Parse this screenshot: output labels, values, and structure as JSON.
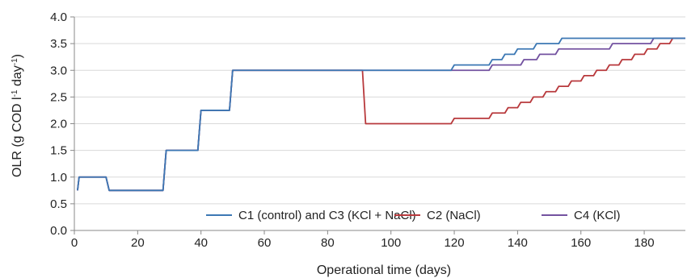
{
  "chart_data": {
    "type": "line",
    "xlabel": "Operational time (days)",
    "ylabel_parts": {
      "base": "OLR (g COD l",
      "sup1": "-1",
      "mid": " day",
      "sup2": "-1",
      "end": ")"
    },
    "xlim": [
      0,
      193
    ],
    "ylim": [
      0,
      4.0
    ],
    "x_ticks": [
      0,
      20,
      40,
      60,
      80,
      100,
      120,
      140,
      160,
      180
    ],
    "y_ticks": [
      "0.0",
      "0.5",
      "1.0",
      "1.5",
      "2.0",
      "2.5",
      "3.0",
      "3.5",
      "4.0"
    ],
    "legend_position": "bottom",
    "series": [
      {
        "name": "C1 (control) and C3 (KCl + NaCl)",
        "color": "#3c78b4",
        "points": [
          [
            1,
            0.75
          ],
          [
            1.5,
            1.0
          ],
          [
            10,
            1.0
          ],
          [
            11,
            0.75
          ],
          [
            28,
            0.75
          ],
          [
            29,
            1.5
          ],
          [
            39,
            1.5
          ],
          [
            40,
            2.25
          ],
          [
            49,
            2.25
          ],
          [
            50,
            3.0
          ],
          [
            119,
            3.0
          ],
          [
            120,
            3.1
          ],
          [
            131,
            3.1
          ],
          [
            132,
            3.2
          ],
          [
            135,
            3.2
          ],
          [
            136,
            3.3
          ],
          [
            139,
            3.3
          ],
          [
            140,
            3.4
          ],
          [
            145,
            3.4
          ],
          [
            146,
            3.5
          ],
          [
            153,
            3.5
          ],
          [
            154,
            3.6
          ],
          [
            193,
            3.6
          ]
        ]
      },
      {
        "name": "C2 (NaCl)",
        "color": "#b8393c",
        "points": [
          [
            1,
            0.75
          ],
          [
            1.5,
            1.0
          ],
          [
            10,
            1.0
          ],
          [
            11,
            0.75
          ],
          [
            28,
            0.75
          ],
          [
            29,
            1.5
          ],
          [
            39,
            1.5
          ],
          [
            40,
            2.25
          ],
          [
            49,
            2.25
          ],
          [
            50,
            3.0
          ],
          [
            91,
            3.0
          ],
          [
            92,
            2.0
          ],
          [
            119,
            2.0
          ],
          [
            120,
            2.1
          ],
          [
            131,
            2.1
          ],
          [
            132,
            2.2
          ],
          [
            136,
            2.2
          ],
          [
            137,
            2.3
          ],
          [
            140,
            2.3
          ],
          [
            141,
            2.4
          ],
          [
            144,
            2.4
          ],
          [
            145,
            2.5
          ],
          [
            148,
            2.5
          ],
          [
            149,
            2.6
          ],
          [
            152,
            2.6
          ],
          [
            153,
            2.7
          ],
          [
            156,
            2.7
          ],
          [
            157,
            2.8
          ],
          [
            160,
            2.8
          ],
          [
            161,
            2.9
          ],
          [
            164,
            2.9
          ],
          [
            165,
            3.0
          ],
          [
            168,
            3.0
          ],
          [
            169,
            3.1
          ],
          [
            172,
            3.1
          ],
          [
            173,
            3.2
          ],
          [
            176,
            3.2
          ],
          [
            177,
            3.3
          ],
          [
            180,
            3.3
          ],
          [
            181,
            3.4
          ],
          [
            184,
            3.4
          ],
          [
            185,
            3.5
          ],
          [
            188,
            3.5
          ],
          [
            189,
            3.6
          ],
          [
            193,
            3.6
          ]
        ]
      },
      {
        "name": "C4 (KCl)",
        "color": "#7352a0",
        "points": [
          [
            1,
            0.75
          ],
          [
            1.5,
            1.0
          ],
          [
            10,
            1.0
          ],
          [
            11,
            0.75
          ],
          [
            28,
            0.75
          ],
          [
            29,
            1.5
          ],
          [
            39,
            1.5
          ],
          [
            40,
            2.25
          ],
          [
            49,
            2.25
          ],
          [
            50,
            3.0
          ],
          [
            131,
            3.0
          ],
          [
            132,
            3.1
          ],
          [
            141,
            3.1
          ],
          [
            142,
            3.2
          ],
          [
            146,
            3.2
          ],
          [
            147,
            3.3
          ],
          [
            152,
            3.3
          ],
          [
            153,
            3.4
          ],
          [
            169,
            3.4
          ],
          [
            170,
            3.5
          ],
          [
            182,
            3.5
          ],
          [
            183,
            3.6
          ],
          [
            193,
            3.6
          ]
        ]
      }
    ]
  }
}
